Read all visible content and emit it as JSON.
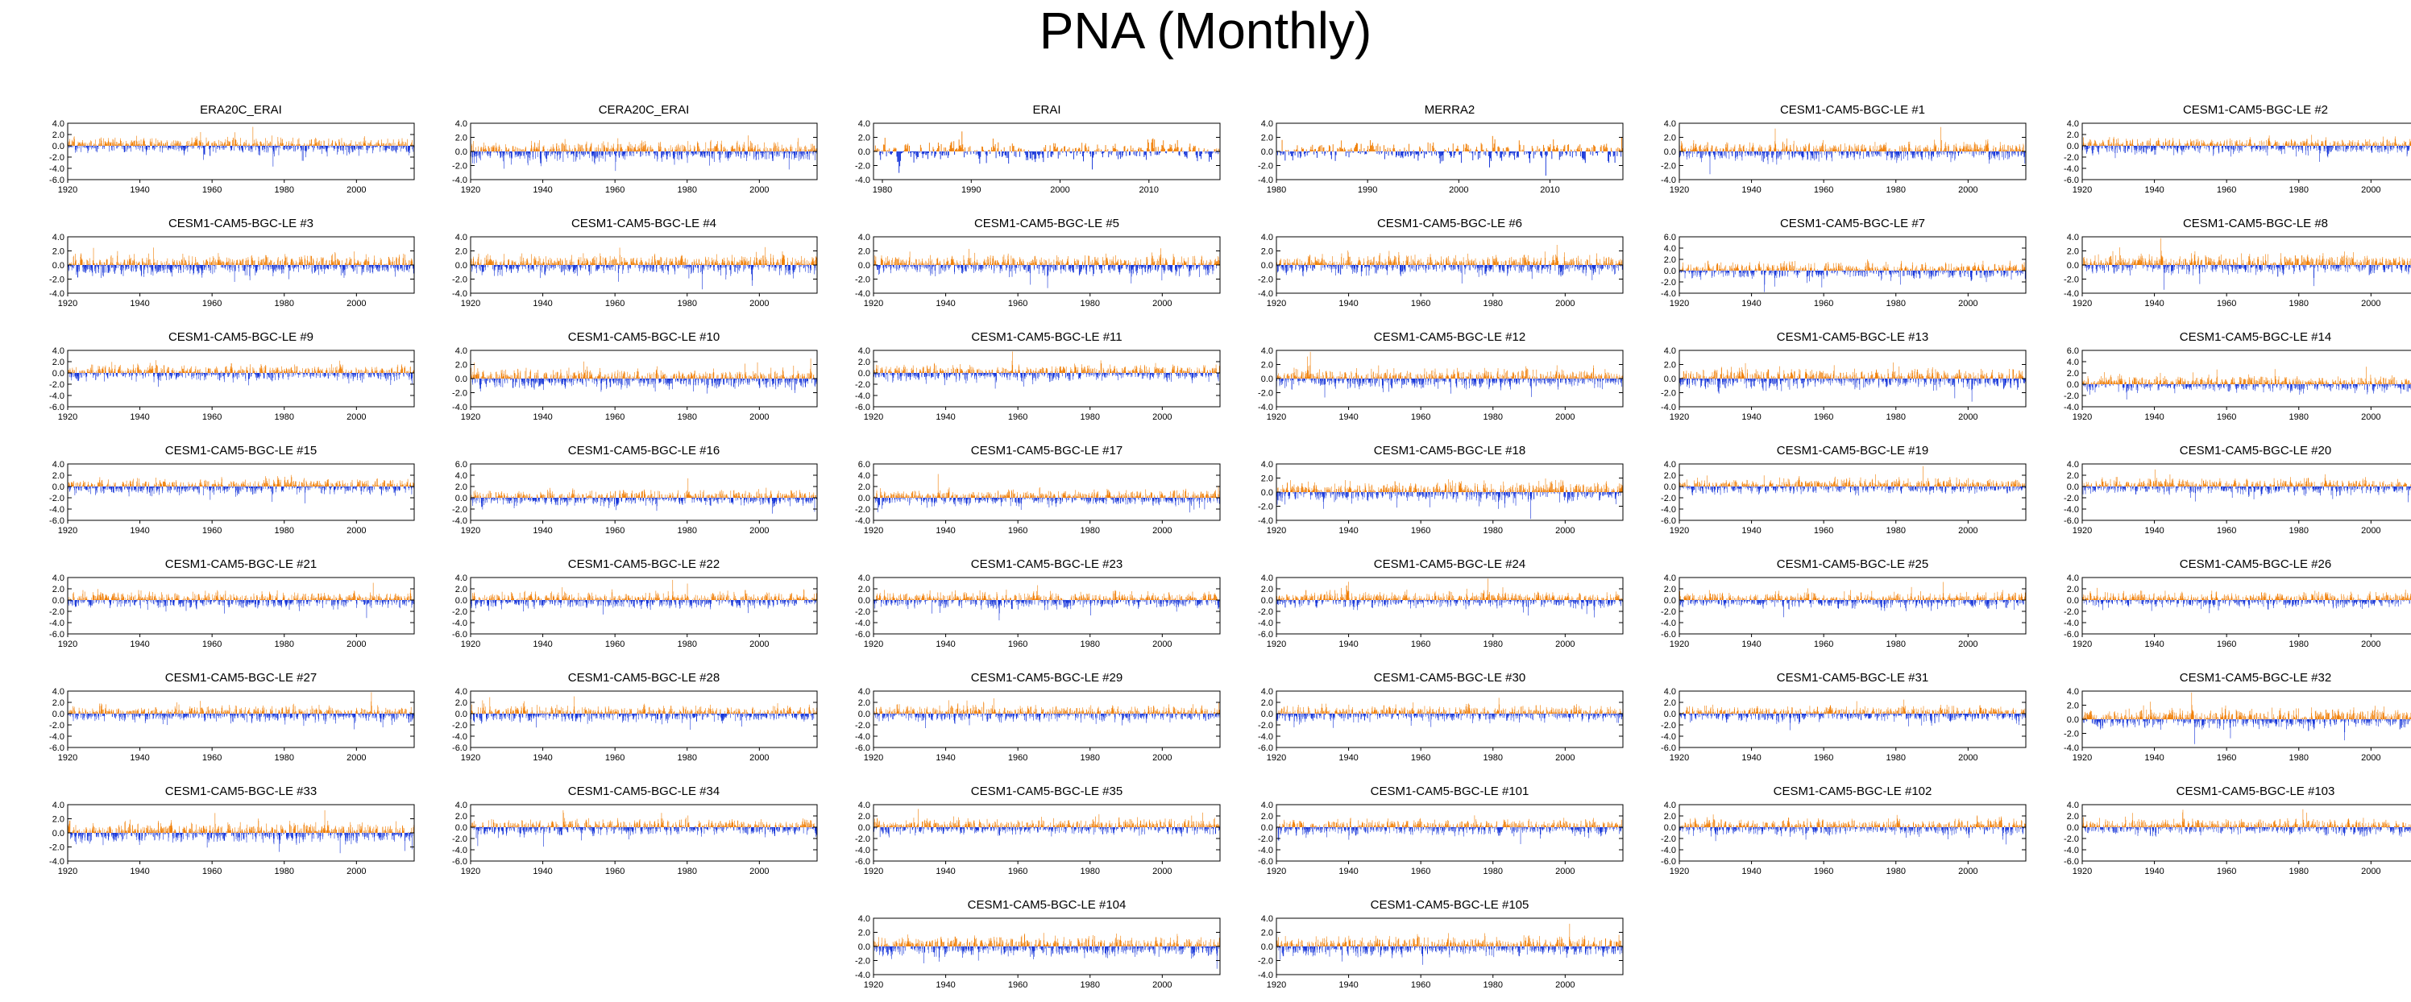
{
  "title": "PNA (Monthly)",
  "colors": {
    "positive": "#f07c00",
    "negative": "#1030d8",
    "axis": "#000000"
  },
  "chart_data": [
    {
      "type": "bar",
      "title": "ERA20C_ERAI",
      "x_range": [
        1920,
        2016
      ],
      "ylim": [
        -6,
        4
      ],
      "yticks": [
        "4.0",
        "2.0",
        "0.0",
        "-2.0",
        "-4.0",
        "-6.0"
      ],
      "xticks": [
        "1920",
        "1940",
        "1960",
        "1980",
        "2000"
      ],
      "seed": 1
    },
    {
      "type": "bar",
      "title": "CERA20C_ERAI",
      "x_range": [
        1920,
        2016
      ],
      "ylim": [
        -4,
        4
      ],
      "yticks": [
        "4.0",
        "2.0",
        "0.0",
        "-2.0",
        "-4.0"
      ],
      "xticks": [
        "1920",
        "1940",
        "1960",
        "1980",
        "2000"
      ],
      "seed": 2
    },
    {
      "type": "bar",
      "title": "ERAI",
      "x_range": [
        1979,
        2018
      ],
      "ylim": [
        -4,
        4
      ],
      "yticks": [
        "4.0",
        "2.0",
        "0.0",
        "-2.0",
        "-4.0"
      ],
      "xticks": [
        "1980",
        "1990",
        "2000",
        "2010"
      ],
      "seed": 3
    },
    {
      "type": "bar",
      "title": "MERRA2",
      "x_range": [
        1980,
        2018
      ],
      "ylim": [
        -4,
        4
      ],
      "yticks": [
        "4.0",
        "2.0",
        "0.0",
        "-2.0",
        "-4.0"
      ],
      "xticks": [
        "1980",
        "1990",
        "2000",
        "2010"
      ],
      "seed": 4
    },
    {
      "type": "bar",
      "title": "CESM1-CAM5-BGC-LE #1",
      "x_range": [
        1920,
        2016
      ],
      "ylim": [
        -4,
        4
      ],
      "yticks": [
        "4.0",
        "2.0",
        "0.0",
        "-2.0",
        "-4.0"
      ],
      "xticks": [
        "1920",
        "1940",
        "1960",
        "1980",
        "2000"
      ],
      "seed": 5
    },
    {
      "type": "bar",
      "title": "CESM1-CAM5-BGC-LE #2",
      "x_range": [
        1920,
        2016
      ],
      "ylim": [
        -6,
        4
      ],
      "yticks": [
        "4.0",
        "2.0",
        "0.0",
        "-2.0",
        "-4.0",
        "-6.0"
      ],
      "xticks": [
        "1920",
        "1940",
        "1960",
        "1980",
        "2000"
      ],
      "seed": 6
    },
    {
      "type": "bar",
      "title": "CESM1-CAM5-BGC-LE #3",
      "x_range": [
        1920,
        2016
      ],
      "ylim": [
        -4,
        4
      ],
      "yticks": [
        "4.0",
        "2.0",
        "0.0",
        "-2.0",
        "-4.0"
      ],
      "xticks": [
        "1920",
        "1940",
        "1960",
        "1980",
        "2000"
      ],
      "seed": 7
    },
    {
      "type": "bar",
      "title": "CESM1-CAM5-BGC-LE #4",
      "x_range": [
        1920,
        2016
      ],
      "ylim": [
        -4,
        4
      ],
      "yticks": [
        "4.0",
        "2.0",
        "0.0",
        "-2.0",
        "-4.0"
      ],
      "xticks": [
        "1920",
        "1940",
        "1960",
        "1980",
        "2000"
      ],
      "seed": 8
    },
    {
      "type": "bar",
      "title": "CESM1-CAM5-BGC-LE #5",
      "x_range": [
        1920,
        2016
      ],
      "ylim": [
        -4,
        4
      ],
      "yticks": [
        "4.0",
        "2.0",
        "0.0",
        "-2.0",
        "-4.0"
      ],
      "xticks": [
        "1920",
        "1940",
        "1960",
        "1980",
        "2000"
      ],
      "seed": 9
    },
    {
      "type": "bar",
      "title": "CESM1-CAM5-BGC-LE #6",
      "x_range": [
        1920,
        2016
      ],
      "ylim": [
        -4,
        4
      ],
      "yticks": [
        "4.0",
        "2.0",
        "0.0",
        "-2.0",
        "-4.0"
      ],
      "xticks": [
        "1920",
        "1940",
        "1960",
        "1980",
        "2000"
      ],
      "seed": 10
    },
    {
      "type": "bar",
      "title": "CESM1-CAM5-BGC-LE #7",
      "x_range": [
        1920,
        2016
      ],
      "ylim": [
        -4,
        6
      ],
      "yticks": [
        "6.0",
        "4.0",
        "2.0",
        "0.0",
        "-2.0",
        "-4.0"
      ],
      "xticks": [
        "1920",
        "1940",
        "1960",
        "1980",
        "2000"
      ],
      "seed": 11
    },
    {
      "type": "bar",
      "title": "CESM1-CAM5-BGC-LE #8",
      "x_range": [
        1920,
        2016
      ],
      "ylim": [
        -4,
        4
      ],
      "yticks": [
        "4.0",
        "2.0",
        "0.0",
        "-2.0",
        "-4.0"
      ],
      "xticks": [
        "1920",
        "1940",
        "1960",
        "1980",
        "2000"
      ],
      "seed": 12
    },
    {
      "type": "bar",
      "title": "CESM1-CAM5-BGC-LE #9",
      "x_range": [
        1920,
        2016
      ],
      "ylim": [
        -6,
        4
      ],
      "yticks": [
        "4.0",
        "2.0",
        "0.0",
        "-2.0",
        "-4.0",
        "-6.0"
      ],
      "xticks": [
        "1920",
        "1940",
        "1960",
        "1980",
        "2000"
      ],
      "seed": 13
    },
    {
      "type": "bar",
      "title": "CESM1-CAM5-BGC-LE #10",
      "x_range": [
        1920,
        2016
      ],
      "ylim": [
        -4,
        4
      ],
      "yticks": [
        "4.0",
        "2.0",
        "0.0",
        "-2.0",
        "-4.0"
      ],
      "xticks": [
        "1920",
        "1940",
        "1960",
        "1980",
        "2000"
      ],
      "seed": 14
    },
    {
      "type": "bar",
      "title": "CESM1-CAM5-BGC-LE #11",
      "x_range": [
        1920,
        2016
      ],
      "ylim": [
        -6,
        4
      ],
      "yticks": [
        "4.0",
        "2.0",
        "0.0",
        "-2.0",
        "-4.0",
        "-6.0"
      ],
      "xticks": [
        "1920",
        "1940",
        "1960",
        "1980",
        "2000"
      ],
      "seed": 15
    },
    {
      "type": "bar",
      "title": "CESM1-CAM5-BGC-LE #12",
      "x_range": [
        1920,
        2016
      ],
      "ylim": [
        -4,
        4
      ],
      "yticks": [
        "4.0",
        "2.0",
        "0.0",
        "-2.0",
        "-4.0"
      ],
      "xticks": [
        "1920",
        "1940",
        "1960",
        "1980",
        "2000"
      ],
      "seed": 16
    },
    {
      "type": "bar",
      "title": "CESM1-CAM5-BGC-LE #13",
      "x_range": [
        1920,
        2016
      ],
      "ylim": [
        -4,
        4
      ],
      "yticks": [
        "4.0",
        "2.0",
        "0.0",
        "-2.0",
        "-4.0"
      ],
      "xticks": [
        "1920",
        "1940",
        "1960",
        "1980",
        "2000"
      ],
      "seed": 17
    },
    {
      "type": "bar",
      "title": "CESM1-CAM5-BGC-LE #14",
      "x_range": [
        1920,
        2016
      ],
      "ylim": [
        -4,
        6
      ],
      "yticks": [
        "6.0",
        "4.0",
        "2.0",
        "0.0",
        "-2.0",
        "-4.0"
      ],
      "xticks": [
        "1920",
        "1940",
        "1960",
        "1980",
        "2000"
      ],
      "seed": 18
    },
    {
      "type": "bar",
      "title": "CESM1-CAM5-BGC-LE #15",
      "x_range": [
        1920,
        2016
      ],
      "ylim": [
        -6,
        4
      ],
      "yticks": [
        "4.0",
        "2.0",
        "0.0",
        "-2.0",
        "-4.0",
        "-6.0"
      ],
      "xticks": [
        "1920",
        "1940",
        "1960",
        "1980",
        "2000"
      ],
      "seed": 19
    },
    {
      "type": "bar",
      "title": "CESM1-CAM5-BGC-LE #16",
      "x_range": [
        1920,
        2016
      ],
      "ylim": [
        -4,
        6
      ],
      "yticks": [
        "6.0",
        "4.0",
        "2.0",
        "0.0",
        "-2.0",
        "-4.0"
      ],
      "xticks": [
        "1920",
        "1940",
        "1960",
        "1980",
        "2000"
      ],
      "seed": 20
    },
    {
      "type": "bar",
      "title": "CESM1-CAM5-BGC-LE #17",
      "x_range": [
        1920,
        2016
      ],
      "ylim": [
        -4,
        6
      ],
      "yticks": [
        "6.0",
        "4.0",
        "2.0",
        "0.0",
        "-2.0",
        "-4.0"
      ],
      "xticks": [
        "1920",
        "1940",
        "1960",
        "1980",
        "2000"
      ],
      "seed": 21
    },
    {
      "type": "bar",
      "title": "CESM1-CAM5-BGC-LE #18",
      "x_range": [
        1920,
        2016
      ],
      "ylim": [
        -4,
        4
      ],
      "yticks": [
        "4.0",
        "2.0",
        "0.0",
        "-2.0",
        "-4.0"
      ],
      "xticks": [
        "1920",
        "1940",
        "1960",
        "1980",
        "2000"
      ],
      "seed": 22
    },
    {
      "type": "bar",
      "title": "CESM1-CAM5-BGC-LE #19",
      "x_range": [
        1920,
        2016
      ],
      "ylim": [
        -6,
        4
      ],
      "yticks": [
        "4.0",
        "2.0",
        "0.0",
        "-2.0",
        "-4.0",
        "-6.0"
      ],
      "xticks": [
        "1920",
        "1940",
        "1960",
        "1980",
        "2000"
      ],
      "seed": 23
    },
    {
      "type": "bar",
      "title": "CESM1-CAM5-BGC-LE #20",
      "x_range": [
        1920,
        2016
      ],
      "ylim": [
        -6,
        4
      ],
      "yticks": [
        "4.0",
        "2.0",
        "0.0",
        "-2.0",
        "-4.0",
        "-6.0"
      ],
      "xticks": [
        "1920",
        "1940",
        "1960",
        "1980",
        "2000"
      ],
      "seed": 24
    },
    {
      "type": "bar",
      "title": "CESM1-CAM5-BGC-LE #21",
      "x_range": [
        1920,
        2016
      ],
      "ylim": [
        -6,
        4
      ],
      "yticks": [
        "4.0",
        "2.0",
        "0.0",
        "-2.0",
        "-4.0",
        "-6.0"
      ],
      "xticks": [
        "1920",
        "1940",
        "1960",
        "1980",
        "2000"
      ],
      "seed": 25
    },
    {
      "type": "bar",
      "title": "CESM1-CAM5-BGC-LE #22",
      "x_range": [
        1920,
        2016
      ],
      "ylim": [
        -6,
        4
      ],
      "yticks": [
        "4.0",
        "2.0",
        "0.0",
        "-2.0",
        "-4.0",
        "-6.0"
      ],
      "xticks": [
        "1920",
        "1940",
        "1960",
        "1980",
        "2000"
      ],
      "seed": 26
    },
    {
      "type": "bar",
      "title": "CESM1-CAM5-BGC-LE #23",
      "x_range": [
        1920,
        2016
      ],
      "ylim": [
        -6,
        4
      ],
      "yticks": [
        "4.0",
        "2.0",
        "0.0",
        "-2.0",
        "-4.0",
        "-6.0"
      ],
      "xticks": [
        "1920",
        "1940",
        "1960",
        "1980",
        "2000"
      ],
      "seed": 27
    },
    {
      "type": "bar",
      "title": "CESM1-CAM5-BGC-LE #24",
      "x_range": [
        1920,
        2016
      ],
      "ylim": [
        -6,
        4
      ],
      "yticks": [
        "4.0",
        "2.0",
        "0.0",
        "-2.0",
        "-4.0",
        "-6.0"
      ],
      "xticks": [
        "1920",
        "1940",
        "1960",
        "1980",
        "2000"
      ],
      "seed": 28
    },
    {
      "type": "bar",
      "title": "CESM1-CAM5-BGC-LE #25",
      "x_range": [
        1920,
        2016
      ],
      "ylim": [
        -6,
        4
      ],
      "yticks": [
        "4.0",
        "2.0",
        "0.0",
        "-2.0",
        "-4.0",
        "-6.0"
      ],
      "xticks": [
        "1920",
        "1940",
        "1960",
        "1980",
        "2000"
      ],
      "seed": 29
    },
    {
      "type": "bar",
      "title": "CESM1-CAM5-BGC-LE #26",
      "x_range": [
        1920,
        2016
      ],
      "ylim": [
        -6,
        4
      ],
      "yticks": [
        "4.0",
        "2.0",
        "0.0",
        "-2.0",
        "-4.0",
        "-6.0"
      ],
      "xticks": [
        "1920",
        "1940",
        "1960",
        "1980",
        "2000"
      ],
      "seed": 30
    },
    {
      "type": "bar",
      "title": "CESM1-CAM5-BGC-LE #27",
      "x_range": [
        1920,
        2016
      ],
      "ylim": [
        -6,
        4
      ],
      "yticks": [
        "4.0",
        "2.0",
        "0.0",
        "-2.0",
        "-4.0",
        "-6.0"
      ],
      "xticks": [
        "1920",
        "1940",
        "1960",
        "1980",
        "2000"
      ],
      "seed": 31
    },
    {
      "type": "bar",
      "title": "CESM1-CAM5-BGC-LE #28",
      "x_range": [
        1920,
        2016
      ],
      "ylim": [
        -6,
        4
      ],
      "yticks": [
        "4.0",
        "2.0",
        "0.0",
        "-2.0",
        "-4.0",
        "-6.0"
      ],
      "xticks": [
        "1920",
        "1940",
        "1960",
        "1980",
        "2000"
      ],
      "seed": 32
    },
    {
      "type": "bar",
      "title": "CESM1-CAM5-BGC-LE #29",
      "x_range": [
        1920,
        2016
      ],
      "ylim": [
        -6,
        4
      ],
      "yticks": [
        "4.0",
        "2.0",
        "0.0",
        "-2.0",
        "-4.0",
        "-6.0"
      ],
      "xticks": [
        "1920",
        "1940",
        "1960",
        "1980",
        "2000"
      ],
      "seed": 33
    },
    {
      "type": "bar",
      "title": "CESM1-CAM5-BGC-LE #30",
      "x_range": [
        1920,
        2016
      ],
      "ylim": [
        -6,
        4
      ],
      "yticks": [
        "4.0",
        "2.0",
        "0.0",
        "-2.0",
        "-4.0",
        "-6.0"
      ],
      "xticks": [
        "1920",
        "1940",
        "1960",
        "1980",
        "2000"
      ],
      "seed": 34
    },
    {
      "type": "bar",
      "title": "CESM1-CAM5-BGC-LE #31",
      "x_range": [
        1920,
        2016
      ],
      "ylim": [
        -6,
        4
      ],
      "yticks": [
        "4.0",
        "2.0",
        "0.0",
        "-2.0",
        "-4.0",
        "-6.0"
      ],
      "xticks": [
        "1920",
        "1940",
        "1960",
        "1980",
        "2000"
      ],
      "seed": 35
    },
    {
      "type": "bar",
      "title": "CESM1-CAM5-BGC-LE #32",
      "x_range": [
        1920,
        2016
      ],
      "ylim": [
        -4,
        4
      ],
      "yticks": [
        "4.0",
        "2.0",
        "0.0",
        "-2.0",
        "-4.0"
      ],
      "xticks": [
        "1920",
        "1940",
        "1960",
        "1980",
        "2000"
      ],
      "seed": 36
    },
    {
      "type": "bar",
      "title": "CESM1-CAM5-BGC-LE #33",
      "x_range": [
        1920,
        2016
      ],
      "ylim": [
        -4,
        4
      ],
      "yticks": [
        "4.0",
        "2.0",
        "0.0",
        "-2.0",
        "-4.0"
      ],
      "xticks": [
        "1920",
        "1940",
        "1960",
        "1980",
        "2000"
      ],
      "seed": 37
    },
    {
      "type": "bar",
      "title": "CESM1-CAM5-BGC-LE #34",
      "x_range": [
        1920,
        2016
      ],
      "ylim": [
        -6,
        4
      ],
      "yticks": [
        "4.0",
        "2.0",
        "0.0",
        "-2.0",
        "-4.0",
        "-6.0"
      ],
      "xticks": [
        "1920",
        "1940",
        "1960",
        "1980",
        "2000"
      ],
      "seed": 38
    },
    {
      "type": "bar",
      "title": "CESM1-CAM5-BGC-LE #35",
      "x_range": [
        1920,
        2016
      ],
      "ylim": [
        -6,
        4
      ],
      "yticks": [
        "4.0",
        "2.0",
        "0.0",
        "-2.0",
        "-4.0",
        "-6.0"
      ],
      "xticks": [
        "1920",
        "1940",
        "1960",
        "1980",
        "2000"
      ],
      "seed": 39
    },
    {
      "type": "bar",
      "title": "CESM1-CAM5-BGC-LE #101",
      "x_range": [
        1920,
        2016
      ],
      "ylim": [
        -6,
        4
      ],
      "yticks": [
        "4.0",
        "2.0",
        "0.0",
        "-2.0",
        "-4.0",
        "-6.0"
      ],
      "xticks": [
        "1920",
        "1940",
        "1960",
        "1980",
        "2000"
      ],
      "seed": 40
    },
    {
      "type": "bar",
      "title": "CESM1-CAM5-BGC-LE #102",
      "x_range": [
        1920,
        2016
      ],
      "ylim": [
        -6,
        4
      ],
      "yticks": [
        "4.0",
        "2.0",
        "0.0",
        "-2.0",
        "-4.0",
        "-6.0"
      ],
      "xticks": [
        "1920",
        "1940",
        "1960",
        "1980",
        "2000"
      ],
      "seed": 41
    },
    {
      "type": "bar",
      "title": "CESM1-CAM5-BGC-LE #103",
      "x_range": [
        1920,
        2016
      ],
      "ylim": [
        -6,
        4
      ],
      "yticks": [
        "4.0",
        "2.0",
        "0.0",
        "-2.0",
        "-4.0",
        "-6.0"
      ],
      "xticks": [
        "1920",
        "1940",
        "1960",
        "1980",
        "2000"
      ],
      "seed": 42
    },
    {
      "type": "bar",
      "title": "CESM1-CAM5-BGC-LE #104",
      "x_range": [
        1920,
        2016
      ],
      "ylim": [
        -4,
        4
      ],
      "yticks": [
        "4.0",
        "2.0",
        "0.0",
        "-2.0",
        "-4.0"
      ],
      "xticks": [
        "1920",
        "1940",
        "1960",
        "1980",
        "2000"
      ],
      "seed": 43
    },
    {
      "type": "bar",
      "title": "CESM1-CAM5-BGC-LE #105",
      "x_range": [
        1920,
        2016
      ],
      "ylim": [
        -4,
        4
      ],
      "yticks": [
        "4.0",
        "2.0",
        "0.0",
        "-2.0",
        "-4.0"
      ],
      "xticks": [
        "1920",
        "1940",
        "1960",
        "1980",
        "2000"
      ],
      "seed": 44
    }
  ]
}
